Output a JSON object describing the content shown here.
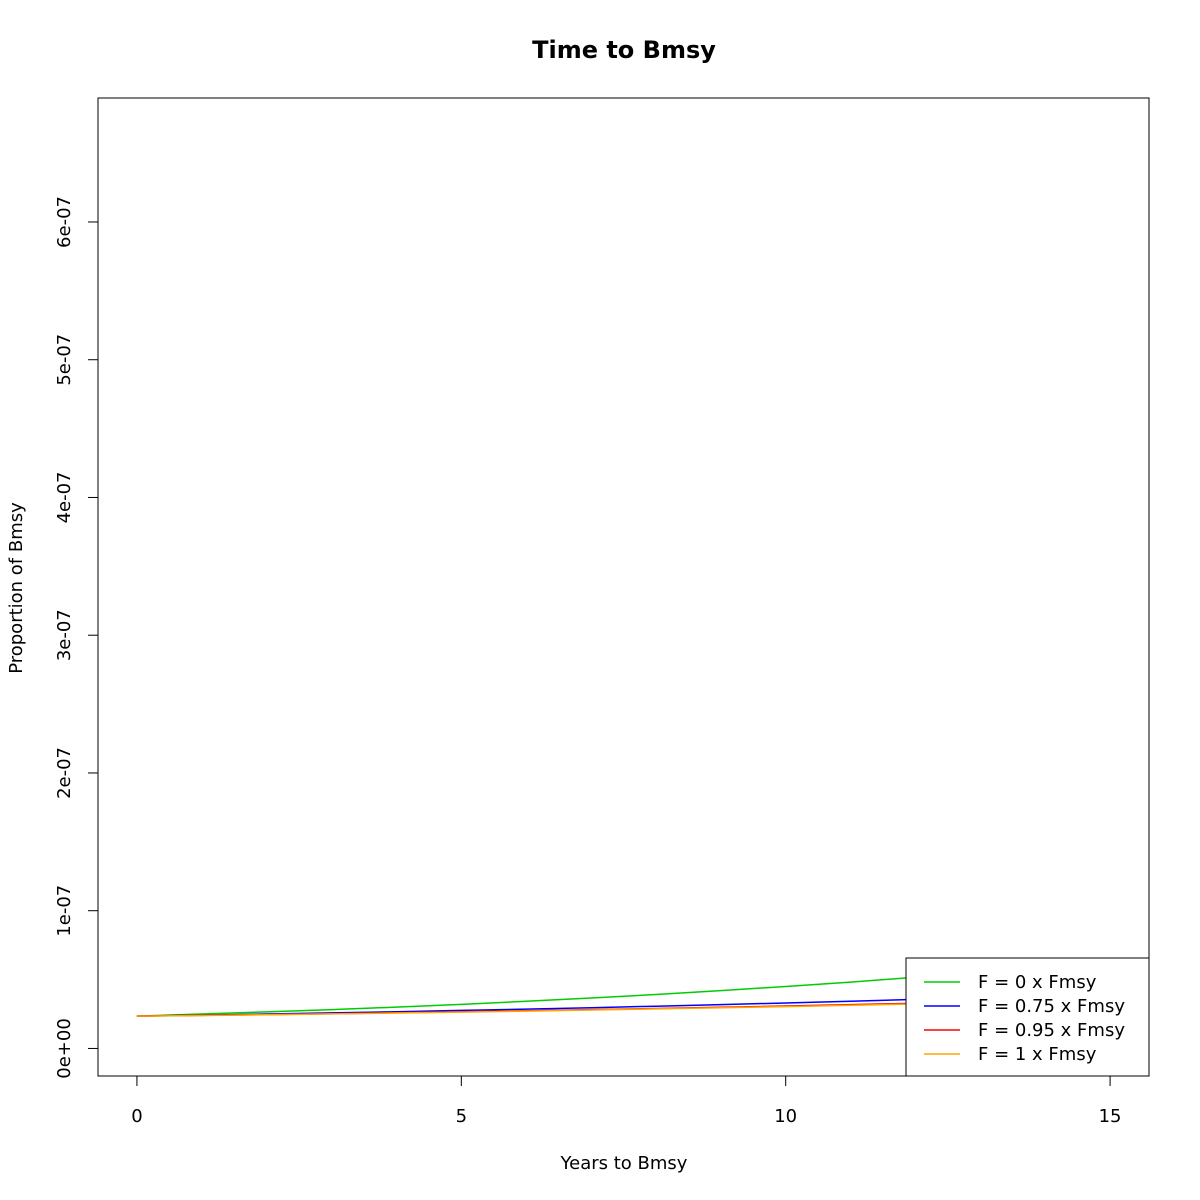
{
  "chart_data": {
    "type": "line",
    "title": "Time to Bmsy",
    "xlabel": "Years to Bmsy",
    "ylabel": "Proportion of Bmsy",
    "xlim": [
      -0.6,
      15.6
    ],
    "ylim": [
      -2e-08,
      6.9e-07
    ],
    "xticks": [
      0,
      5,
      10,
      15
    ],
    "xtick_labels": [
      "0",
      "5",
      "10",
      "15"
    ],
    "yticks": [
      0,
      1e-07,
      2e-07,
      3e-07,
      4e-07,
      5e-07,
      6e-07
    ],
    "ytick_labels": [
      "0e+00",
      "1e-07",
      "2e-07",
      "3e-07",
      "4e-07",
      "5e-07",
      "6e-07"
    ],
    "grid": false,
    "legend_position": "bottom-right",
    "series": [
      {
        "name": "F = 0 x Fmsy",
        "color": "#00cd00",
        "x": [
          0,
          1,
          2,
          3,
          4,
          5,
          6,
          7,
          8,
          9,
          10,
          11,
          12,
          13,
          14,
          15
        ],
        "values": [
          2.35e-08,
          2.5e-08,
          2.65e-08,
          2.82e-08,
          3e-08,
          3.2e-08,
          3.42e-08,
          3.66e-08,
          3.92e-08,
          4.2e-08,
          4.5e-08,
          4.82e-08,
          5.17e-08,
          5.54e-08,
          5.94e-08,
          6.37e-08
        ]
      },
      {
        "name": "F = 0.75 x Fmsy",
        "color": "#0000ff",
        "x": [
          0,
          1,
          2,
          3,
          4,
          5,
          6,
          7,
          8,
          9,
          10,
          11,
          12,
          13,
          14,
          15
        ],
        "values": [
          2.35e-08,
          2.42e-08,
          2.5e-08,
          2.58e-08,
          2.67e-08,
          2.76e-08,
          2.86e-08,
          2.96e-08,
          3.07e-08,
          3.18e-08,
          3.3e-08,
          3.43e-08,
          3.56e-08,
          3.7e-08,
          3.85e-08,
          4e-08
        ]
      },
      {
        "name": "F = 0.95 x Fmsy",
        "color": "#ff0000",
        "x": [
          0,
          1,
          2,
          3,
          4,
          5,
          6,
          7,
          8,
          9,
          10,
          11,
          12,
          13,
          14,
          15
        ],
        "values": [
          2.35e-08,
          2.4e-08,
          2.46e-08,
          2.52e-08,
          2.59e-08,
          2.66e-08,
          2.74e-08,
          2.82e-08,
          2.9e-08,
          2.99e-08,
          3.08e-08,
          3.18e-08,
          3.28e-08,
          3.38e-08,
          3.49e-08,
          3.6e-08
        ]
      },
      {
        "name": "F = 1 x Fmsy",
        "color": "#ffa500",
        "x": [
          0,
          1,
          2,
          3,
          4,
          5,
          6,
          7,
          8,
          9,
          10,
          11,
          12,
          13,
          14,
          15
        ],
        "values": [
          2.35e-08,
          2.39e-08,
          2.45e-08,
          2.51e-08,
          2.57e-08,
          2.64e-08,
          2.71e-08,
          2.79e-08,
          2.87e-08,
          2.95e-08,
          3.04e-08,
          3.13e-08,
          3.23e-08,
          3.33e-08,
          3.43e-08,
          3.54e-08
        ]
      }
    ]
  }
}
